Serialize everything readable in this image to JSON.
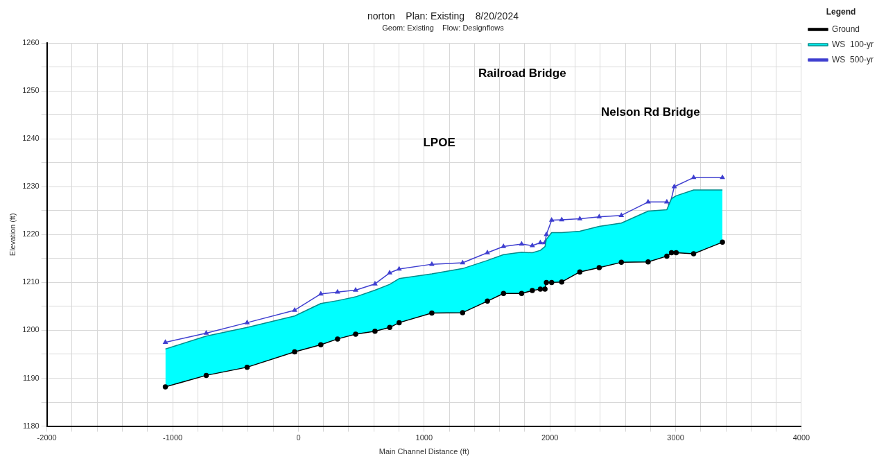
{
  "chart_data": {
    "type": "line",
    "title": "norton    Plan: Existing    8/20/2024",
    "subtitle": "Geom: Existing    Flow: Designflows",
    "xlabel": "Main Channel Distance (ft)",
    "ylabel": "Elevation (ft)",
    "legend_title": "Legend",
    "legend": "right",
    "grid": true,
    "xlim": [
      -2000,
      4000
    ],
    "xticks": [
      -2000,
      {
        "value": -1800,
        "label": null
      },
      {
        "value": -1600,
        "label": null
      },
      {
        "value": -1400,
        "label": null
      },
      {
        "value": -1200,
        "label": null
      },
      -1000,
      {
        "value": -800,
        "label": null
      },
      {
        "value": -600,
        "label": null
      },
      {
        "value": -400,
        "label": null
      },
      {
        "value": -200,
        "label": null
      },
      0,
      {
        "value": 200,
        "label": null
      },
      {
        "value": 400,
        "label": null
      },
      {
        "value": 600,
        "label": null
      },
      {
        "value": 800,
        "label": null
      },
      1000,
      {
        "value": 1200,
        "label": null
      },
      {
        "value": 1400,
        "label": null
      },
      {
        "value": 1600,
        "label": null
      },
      {
        "value": 1800,
        "label": null
      },
      2000,
      {
        "value": 2200,
        "label": null
      },
      {
        "value": 2400,
        "label": null
      },
      {
        "value": 2600,
        "label": null
      },
      {
        "value": 2800,
        "label": null
      },
      3000,
      {
        "value": 3200,
        "label": null
      },
      {
        "value": 3400,
        "label": null
      },
      {
        "value": 3600,
        "label": null
      },
      {
        "value": 3800,
        "label": null
      },
      4000
    ],
    "ylim": [
      1180,
      1260
    ],
    "yticks": [
      1180,
      {
        "value": 1185,
        "label": null
      },
      1190,
      {
        "value": 1195,
        "label": null
      },
      1200,
      {
        "value": 1205,
        "label": null
      },
      1210,
      {
        "value": 1215,
        "label": null
      },
      1220,
      {
        "value": 1225,
        "label": null
      },
      1230,
      {
        "value": 1235,
        "label": null
      },
      1240,
      {
        "value": 1245,
        "label": null
      },
      1250,
      {
        "value": 1255,
        "label": null
      },
      1260
    ],
    "annotations": [
      "Railroad Bridge",
      "Nelson Rd Bridge",
      "LPOE"
    ],
    "x": [
      -1058,
      -733,
      -408,
      -30,
      178,
      311,
      455,
      609,
      726,
      801,
      1061,
      1306,
      1503,
      1631,
      1775,
      1860,
      1924,
      1961,
      1972,
      2014,
      2094,
      2238,
      2392,
      2568,
      2781,
      2930,
      2967,
      3004,
      3143,
      3372
    ],
    "series": [
      {
        "name": "WS  500-yr",
        "type": "line",
        "color": "#3f3fd0",
        "marker": "triangle",
        "x": [
          -1058,
          -733,
          -408,
          -30,
          178,
          311,
          455,
          609,
          726,
          801,
          1061,
          1306,
          1503,
          1631,
          1775,
          1860,
          1924,
          1961,
          1972,
          2014,
          2094,
          2238,
          2392,
          2568,
          2781,
          2930,
          2957,
          2989,
          3143,
          3372
        ],
        "values": [
          1197.5,
          1199.4,
          1201.6,
          1204.2,
          1207.6,
          1208.0,
          1208.4,
          1209.7,
          1212.0,
          1212.8,
          1213.8,
          1214.1,
          1216.2,
          1217.5,
          1218.0,
          1217.7,
          1218.3,
          1218.3,
          1220.0,
          1223.0,
          1223.1,
          1223.3,
          1223.7,
          1224.0,
          1226.8,
          1226.8,
          1226.5,
          1230.0,
          1231.9,
          1231.9
        ]
      },
      {
        "name": "WS  100-yr",
        "type": "area",
        "color": "#00ffff",
        "marker": "none",
        "values": [
          1196.1,
          1198.8,
          1200.6,
          1203.0,
          1205.6,
          1206.2,
          1207.0,
          1208.4,
          1209.6,
          1210.8,
          1211.8,
          1212.9,
          1214.6,
          1215.8,
          1216.3,
          1216.2,
          1216.7,
          1217.5,
          1219.0,
          1220.4,
          1220.4,
          1220.7,
          1221.7,
          1222.4,
          1224.9,
          1225.2,
          1227.5,
          1228.1,
          1229.3,
          1229.3
        ]
      },
      {
        "name": "Ground",
        "type": "line",
        "color": "#000000",
        "marker": "circle",
        "values": [
          1188.2,
          1190.6,
          1192.3,
          1195.5,
          1197.0,
          1198.2,
          1199.2,
          1199.8,
          1200.6,
          1201.6,
          1203.6,
          1203.7,
          1206.1,
          1207.7,
          1207.7,
          1208.3,
          1208.6,
          1208.6,
          1210.0,
          1210.0,
          1210.1,
          1212.2,
          1213.1,
          1214.2,
          1214.3,
          1215.5,
          1216.2,
          1216.2,
          1216.0,
          1218.4
        ]
      }
    ]
  }
}
